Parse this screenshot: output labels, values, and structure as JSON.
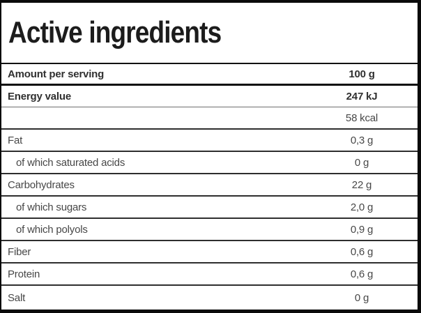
{
  "label": {
    "title": "Active ingredients",
    "header": {
      "label": "Amount per serving",
      "value": "100 g"
    },
    "rows": [
      {
        "label": "Energy value",
        "value": "247 kJ",
        "bold": true,
        "divider": "thin"
      },
      {
        "label": "",
        "value": "58 kcal"
      },
      {
        "label": "Fat",
        "value": "0,3 g"
      },
      {
        "label": "of which saturated acids",
        "value": "0 g",
        "indent": true
      },
      {
        "label": "Carbohydrates",
        "value": "22 g"
      },
      {
        "label": "of which sugars",
        "value": "2,0 g",
        "indent": true
      },
      {
        "label": "of which polyols",
        "value": "0,9 g",
        "indent": true
      },
      {
        "label": "Fiber",
        "value": "0,6 g"
      },
      {
        "label": "Protein",
        "value": "0,6 g"
      },
      {
        "label": "Salt",
        "value": "0 g",
        "last": true
      }
    ],
    "colors": {
      "border": "#0a0a0a",
      "divider": "#2e2e2e",
      "divider_thin": "#6e6e6e",
      "title_text": "#1c1c1c",
      "bold_text": "#303030",
      "text": "#474747",
      "background": "#ffffff"
    }
  }
}
